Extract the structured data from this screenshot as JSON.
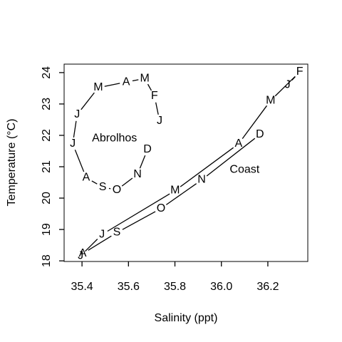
{
  "chart_data": {
    "type": "labeled-line",
    "xlabel": "Salinity (ppt)",
    "ylabel": "Temperature (°C)",
    "xlim": [
      35.323,
      36.372
    ],
    "ylim": [
      17.98,
      24.27
    ],
    "xticks": [
      35.4,
      35.6,
      35.8,
      {
        "value": 36,
        "label": "36.0"
      },
      36.2
    ],
    "yticks": [
      18,
      19,
      20,
      21,
      22,
      23,
      24
    ],
    "color": "#000000",
    "series": [
      {
        "name": "Abrolhos",
        "labels": [
          "J",
          "F",
          "M",
          "A",
          "M",
          "J",
          "J",
          "A",
          "S",
          "O",
          "N",
          "D"
        ],
        "x": [
          35.734,
          35.712,
          35.67,
          35.59,
          35.47,
          35.379,
          35.36,
          35.418,
          35.489,
          35.55,
          35.639,
          35.682
        ],
        "y": [
          22.46,
          23.25,
          23.81,
          23.7,
          23.52,
          22.66,
          21.73,
          20.65,
          20.35,
          20.26,
          20.76,
          21.55
        ],
        "name_x": 35.54,
        "name_y": 21.9
      },
      {
        "name": "Coast",
        "labels": [
          "J",
          "F",
          "M",
          "A",
          "M",
          "J",
          "J",
          "A",
          "S",
          "O",
          "N",
          "D"
        ],
        "x": [
          36.285,
          36.337,
          36.212,
          36.074,
          35.801,
          35.486,
          35.394,
          35.403,
          35.55,
          35.74,
          35.915,
          36.166
        ],
        "y": [
          23.61,
          24.02,
          23.11,
          21.73,
          20.24,
          18.84,
          18.16,
          18.23,
          18.9,
          19.67,
          20.58,
          22.03
        ],
        "name_x": 36.1,
        "name_y": 20.9
      }
    ]
  }
}
